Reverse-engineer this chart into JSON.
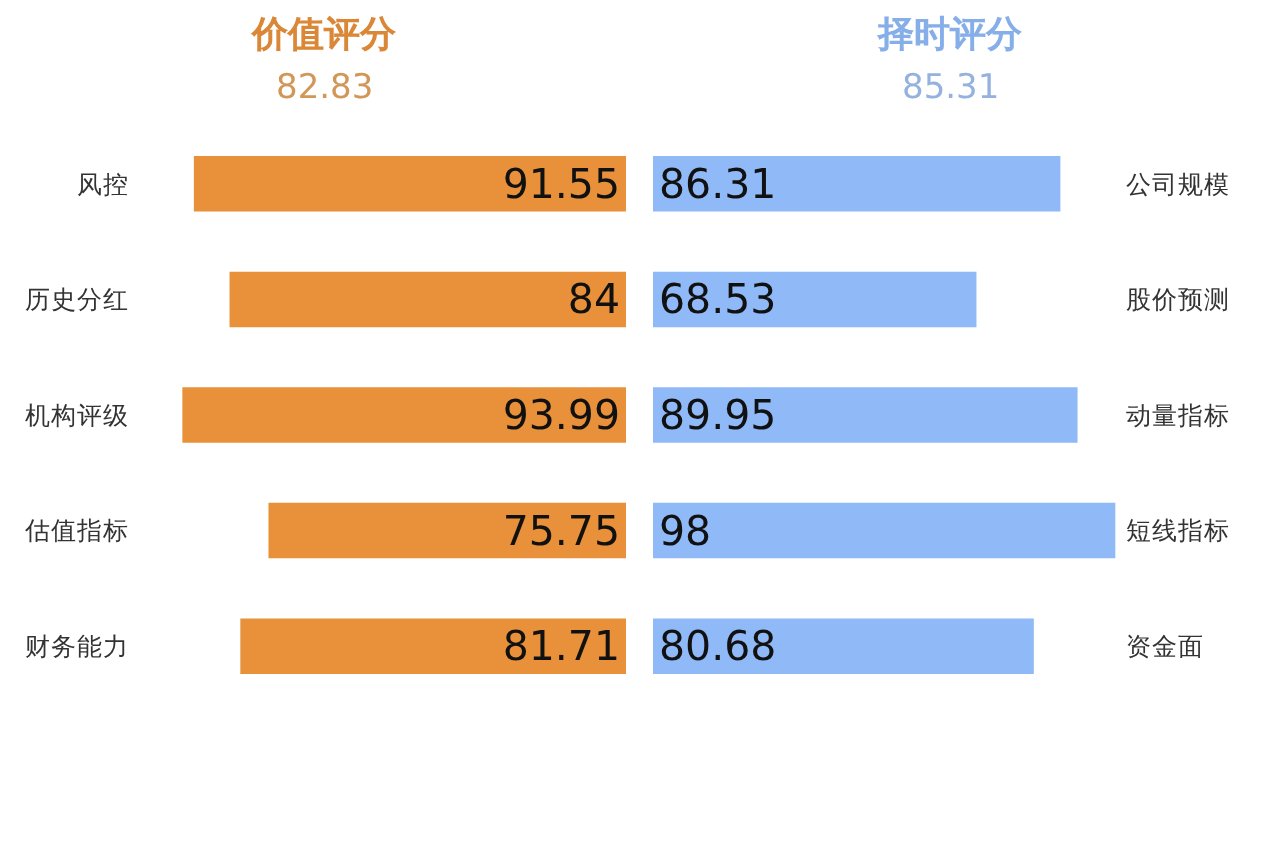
{
  "chart_data": [
    {
      "type": "bar",
      "orientation": "horizontal",
      "title": "价值评分",
      "subtitle": "82.83",
      "categories": [
        "风控",
        "历史分红",
        "机构评级",
        "估值指标",
        "财务能力"
      ],
      "values": [
        91.55,
        84,
        93.99,
        75.75,
        81.71
      ],
      "color": "#e8913a",
      "data_labels": true,
      "tick_labels": "y"
    },
    {
      "type": "bar",
      "orientation": "horizontal",
      "title": "择时评分",
      "subtitle": "85.31",
      "categories": [
        "公司规模",
        "股价预测",
        "动量指标",
        "短线指标",
        "资金面"
      ],
      "values": [
        86.31,
        68.53,
        89.95,
        98,
        80.68
      ],
      "color": "#8fb9f7",
      "data_labels": true,
      "tick_labels": "y"
    }
  ]
}
